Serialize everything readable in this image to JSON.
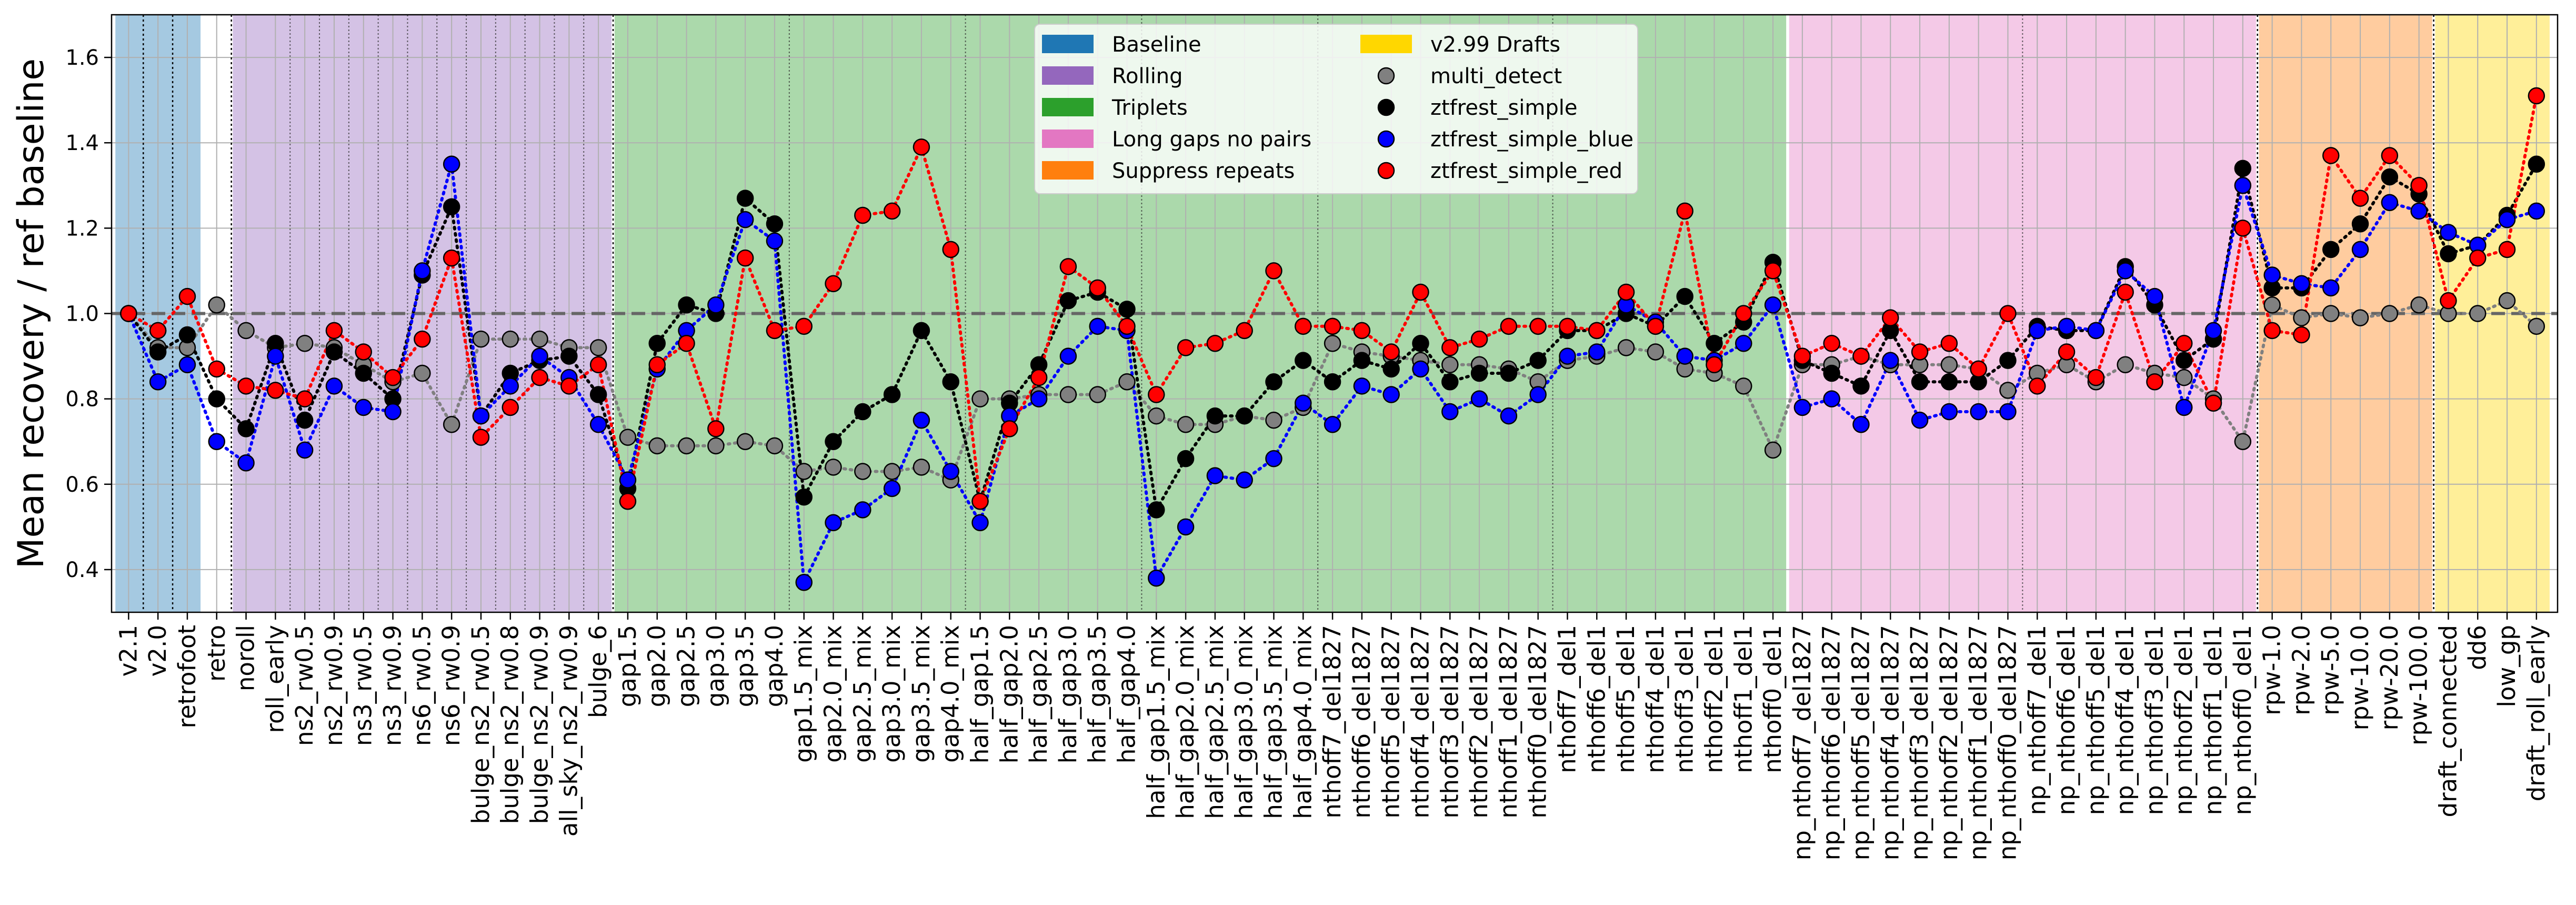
{
  "chart_data": {
    "type": "scatter",
    "ylabel": "Mean recovery / ref baseline",
    "xlabel": "",
    "ylim": [
      0.3,
      1.7
    ],
    "yticks": [
      "0.4",
      "0.6",
      "0.8",
      "1.0",
      "1.2",
      "1.4",
      "1.6"
    ],
    "grid": true,
    "reference_line": 1.0,
    "legend_position": "top-center",
    "categories": [
      "v2.1",
      "v2.0",
      "retrofoot",
      "retro",
      "noroll",
      "roll_early",
      "ns2_rw0.5",
      "ns2_rw0.9",
      "ns3_rw0.5",
      "ns3_rw0.9",
      "ns6_rw0.5",
      "ns6_rw0.9",
      "bulge_ns2_rw0.5",
      "bulge_ns2_rw0.8",
      "bulge_ns2_rw0.9",
      "all_sky_ns2_rw0.9",
      "bulge_6",
      "gap1.5",
      "gap2.0",
      "gap2.5",
      "gap3.0",
      "gap3.5",
      "gap4.0",
      "gap1.5_mix",
      "gap2.0_mix",
      "gap2.5_mix",
      "gap3.0_mix",
      "gap3.5_mix",
      "gap4.0_mix",
      "half_gap1.5",
      "half_gap2.0",
      "half_gap2.5",
      "half_gap3.0",
      "half_gap3.5",
      "half_gap4.0",
      "half_gap1.5_mix",
      "half_gap2.0_mix",
      "half_gap2.5_mix",
      "half_gap3.0_mix",
      "half_gap3.5_mix",
      "half_gap4.0_mix",
      "nthoff7_del1827",
      "nthoff6_del1827",
      "nthoff5_del1827",
      "nthoff4_del1827",
      "nthoff3_del1827",
      "nthoff2_del1827",
      "nthoff1_del1827",
      "nthoff0_del1827",
      "nthoff7_del1",
      "nthoff6_del1",
      "nthoff5_del1",
      "nthoff4_del1",
      "nthoff3_del1",
      "nthoff2_del1",
      "nthoff1_del1",
      "nthoff0_del1",
      "np_nthoff7_del1827",
      "np_nthoff6_del1827",
      "np_nthoff5_del1827",
      "np_nthoff4_del1827",
      "np_nthoff3_del1827",
      "np_nthoff2_del1827",
      "np_nthoff1_del1827",
      "np_nthoff0_del1827",
      "np_nthoff7_del1",
      "np_nthoff6_del1",
      "np_nthoff5_del1",
      "np_nthoff4_del1",
      "np_nthoff3_del1",
      "np_nthoff2_del1",
      "np_nthoff1_del1",
      "np_nthoff0_del1",
      "rpw-1.0",
      "rpw-2.0",
      "rpw-5.0",
      "rpw-10.0",
      "rpw-20.0",
      "rpw-100.0",
      "draft_connected",
      "dd6",
      "low_gp",
      "draft_roll_early"
    ],
    "groups": [
      {
        "name": "Baseline",
        "color": "#1f77b4",
        "range": [
          0,
          2
        ]
      },
      {
        "name": "Rolling",
        "color": "#9467bd",
        "range": [
          4,
          16
        ]
      },
      {
        "name": "Triplets",
        "color": "#2ca02c",
        "range": [
          17,
          56
        ]
      },
      {
        "name": "Long gaps no pairs",
        "color": "#e377c2",
        "range": [
          57,
          72
        ]
      },
      {
        "name": "Suppress repeats",
        "color": "#ff7f0e",
        "range": [
          73,
          78
        ]
      },
      {
        "name": "v2.99 Drafts",
        "color": "#ffd700",
        "range": [
          79,
          82
        ]
      }
    ],
    "separators_dotted": [
      0.5,
      1.5,
      3.5,
      16.5,
      72.5,
      78.5
    ],
    "separators_thin": [
      5.5,
      6.5,
      7.5,
      8.5,
      9.5,
      10.5,
      11.5,
      12.5,
      13.5,
      14.5,
      15.5,
      22.5,
      28.5,
      34.5,
      40.5,
      48.5,
      64.5
    ],
    "series": [
      {
        "name": "multi_detect",
        "color": "#808080",
        "values": [
          1.0,
          0.92,
          0.92,
          1.02,
          0.96,
          0.92,
          0.93,
          0.92,
          0.88,
          0.84,
          0.86,
          0.74,
          0.94,
          0.94,
          0.94,
          0.92,
          0.92,
          0.71,
          0.69,
          0.69,
          0.69,
          0.7,
          0.69,
          0.63,
          0.64,
          0.63,
          0.63,
          0.64,
          0.61,
          0.8,
          0.8,
          0.81,
          0.81,
          0.81,
          0.84,
          0.76,
          0.74,
          0.74,
          0.76,
          0.75,
          0.78,
          0.93,
          0.91,
          0.9,
          0.89,
          0.88,
          0.88,
          0.87,
          0.84,
          0.89,
          0.9,
          0.92,
          0.91,
          0.87,
          0.86,
          0.83,
          0.68,
          0.88,
          0.88,
          0.9,
          0.88,
          0.88,
          0.88,
          0.87,
          0.82,
          0.86,
          0.88,
          0.84,
          0.88,
          0.86,
          0.85,
          0.8,
          0.7,
          1.02,
          0.99,
          1.0,
          0.99,
          1.0,
          1.02,
          1.0,
          1.0,
          1.03,
          0.97
        ]
      },
      {
        "name": "ztfrest_simple",
        "color": "#000000",
        "values": [
          1.0,
          0.91,
          0.95,
          0.8,
          0.73,
          0.93,
          0.75,
          0.91,
          0.86,
          0.8,
          1.09,
          1.25,
          0.76,
          0.86,
          0.89,
          0.9,
          0.81,
          0.59,
          0.93,
          1.02,
          1.0,
          1.27,
          1.21,
          0.57,
          0.7,
          0.77,
          0.81,
          0.96,
          0.84,
          0.56,
          0.79,
          0.88,
          1.03,
          1.05,
          1.01,
          0.54,
          0.66,
          0.76,
          0.76,
          0.84,
          0.89,
          0.84,
          0.89,
          0.87,
          0.93,
          0.84,
          0.86,
          0.86,
          0.89,
          0.96,
          0.96,
          1.0,
          0.97,
          1.04,
          0.93,
          0.98,
          1.12,
          0.89,
          0.86,
          0.83,
          0.96,
          0.84,
          0.84,
          0.84,
          0.89,
          0.97,
          0.96,
          0.96,
          1.11,
          1.02,
          0.89,
          0.94,
          1.34,
          1.06,
          1.06,
          1.15,
          1.21,
          1.32,
          1.28,
          1.14,
          1.16,
          1.23,
          1.35
        ]
      },
      {
        "name": "ztfrest_simple_blue",
        "color": "#0000ff",
        "values": [
          1.0,
          0.84,
          0.88,
          0.7,
          0.65,
          0.9,
          0.68,
          0.83,
          0.78,
          0.77,
          1.1,
          1.35,
          0.76,
          0.83,
          0.9,
          0.85,
          0.74,
          0.61,
          0.87,
          0.96,
          1.02,
          1.22,
          1.17,
          0.37,
          0.51,
          0.54,
          0.59,
          0.75,
          0.63,
          0.51,
          0.76,
          0.8,
          0.9,
          0.97,
          0.96,
          0.38,
          0.5,
          0.62,
          0.61,
          0.66,
          0.79,
          0.74,
          0.83,
          0.81,
          0.87,
          0.77,
          0.8,
          0.76,
          0.81,
          0.9,
          0.91,
          1.02,
          0.98,
          0.9,
          0.89,
          0.93,
          1.02,
          0.78,
          0.8,
          0.74,
          0.89,
          0.75,
          0.77,
          0.77,
          0.77,
          0.96,
          0.97,
          0.96,
          1.1,
          1.04,
          0.78,
          0.96,
          1.3,
          1.09,
          1.07,
          1.06,
          1.15,
          1.26,
          1.24,
          1.19,
          1.16,
          1.22,
          1.24
        ]
      },
      {
        "name": "ztfrest_simple_red",
        "color": "#ff0000",
        "values": [
          1.0,
          0.96,
          1.04,
          0.87,
          0.83,
          0.82,
          0.8,
          0.96,
          0.91,
          0.85,
          0.94,
          1.13,
          0.71,
          0.78,
          0.85,
          0.83,
          0.88,
          0.56,
          0.88,
          0.93,
          0.73,
          1.13,
          0.96,
          0.97,
          1.07,
          1.23,
          1.24,
          1.39,
          1.15,
          0.56,
          0.73,
          0.85,
          1.11,
          1.06,
          0.97,
          0.81,
          0.92,
          0.93,
          0.96,
          1.1,
          0.97,
          0.97,
          0.96,
          0.91,
          1.05,
          0.92,
          0.94,
          0.97,
          0.97,
          0.97,
          0.96,
          1.05,
          0.97,
          1.24,
          0.88,
          1.0,
          1.1,
          0.9,
          0.93,
          0.9,
          0.99,
          0.91,
          0.93,
          0.87,
          1.0,
          0.83,
          0.91,
          0.85,
          1.05,
          0.84,
          0.93,
          0.79,
          1.2,
          0.96,
          0.95,
          1.37,
          1.27,
          1.37,
          1.3,
          1.03,
          1.13,
          1.15,
          1.51
        ]
      }
    ]
  }
}
